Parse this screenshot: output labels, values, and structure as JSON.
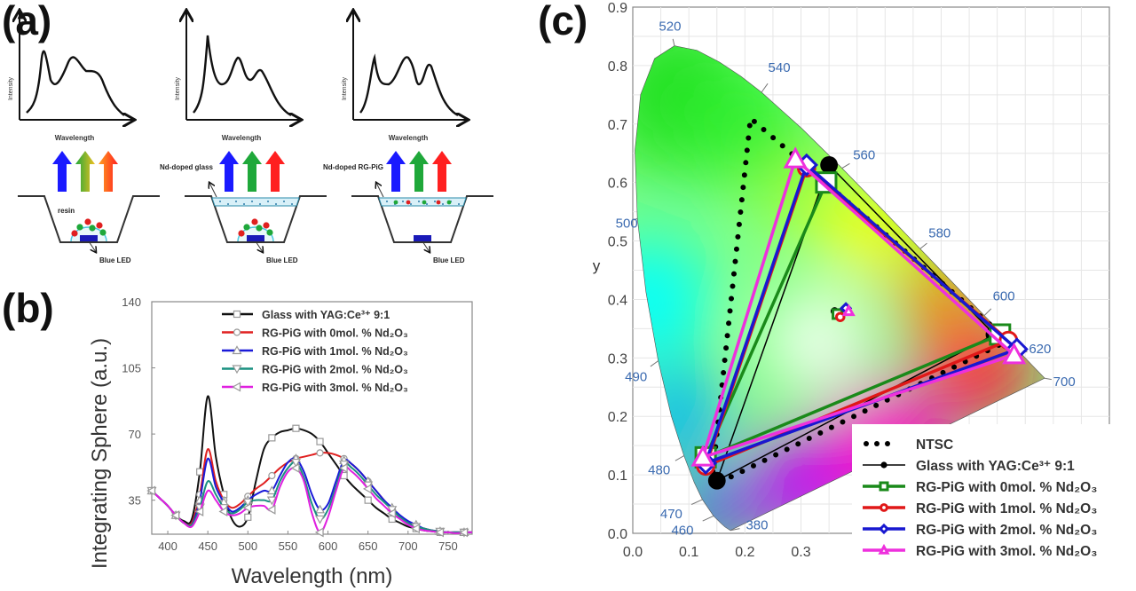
{
  "panel_labels": {
    "a": "(a)",
    "b": "(b)",
    "c": "(c)"
  },
  "panel_a": {
    "columns": [
      {
        "ylabel": "Intensity",
        "xlabel": "Wavelength",
        "layer_label": "resin",
        "chip_label": "Blue LED"
      },
      {
        "ylabel": "Intensity",
        "xlabel": "Wavelength",
        "layer_label": "Nd-doped glass",
        "chip_label": "Blue LED"
      },
      {
        "ylabel": "Intensity",
        "xlabel": "Wavelength",
        "layer_label": "Nd-doped RG-PiG",
        "chip_label": "Blue LED"
      }
    ],
    "arrow_colors": [
      "#1a1aff",
      "#1fa83a",
      "#ff2020"
    ]
  },
  "chart_data": [
    {
      "type": "line",
      "panel": "b",
      "xlabel": "Wavelength (nm)",
      "ylabel": "Integrating Sphere (a.u.)",
      "xlim": [
        380,
        780
      ],
      "ylim": [
        17,
        140
      ],
      "xticks": [
        400,
        450,
        500,
        550,
        600,
        650,
        700,
        750
      ],
      "yticks": [
        35,
        70,
        105,
        140
      ],
      "legend_position": "top-right",
      "x": [
        380,
        390,
        400,
        410,
        420,
        430,
        440,
        450,
        460,
        470,
        480,
        490,
        500,
        510,
        520,
        530,
        540,
        550,
        560,
        570,
        580,
        590,
        600,
        610,
        620,
        630,
        640,
        650,
        660,
        670,
        680,
        690,
        700,
        710,
        720,
        730,
        740,
        750,
        760,
        770,
        780
      ],
      "series": [
        {
          "name": "Glass with YAG:Ce³⁺ 9:1",
          "color": "#111111",
          "marker": "square",
          "values": [
            40,
            36,
            32,
            27,
            24,
            25,
            50,
            90,
            58,
            38,
            25,
            21,
            26,
            45,
            62,
            68,
            71,
            72,
            73,
            72,
            70,
            66,
            60,
            54,
            48,
            43,
            39,
            35,
            31,
            28,
            25,
            23,
            21,
            20,
            19,
            18.5,
            18,
            18,
            18,
            18,
            18
          ]
        },
        {
          "name": "RG-PiG with 0mol. % Nd₂O₃",
          "color": "#e02020",
          "marker": "circle",
          "values": [
            40,
            36,
            32,
            27,
            23,
            23,
            38,
            62,
            45,
            35,
            31,
            33,
            37,
            41,
            44,
            48,
            52,
            55,
            57,
            58,
            59,
            60,
            60,
            59,
            57,
            54,
            50,
            45,
            40,
            35,
            30,
            26,
            23,
            21,
            20,
            19,
            18.5,
            18,
            18,
            18,
            18
          ]
        },
        {
          "name": "RG-PiG with 1mol. % Nd₂O₃",
          "color": "#1a1ad8",
          "marker": "triangle-up",
          "values": [
            40,
            36,
            32,
            27,
            23,
            22,
            35,
            57,
            42,
            34,
            29,
            31,
            35,
            38,
            40,
            40,
            48,
            55,
            57,
            50,
            38,
            30,
            33,
            45,
            56,
            54,
            50,
            45,
            40,
            35,
            31,
            27,
            24,
            22,
            20,
            19,
            18.5,
            18,
            18,
            18,
            18
          ]
        },
        {
          "name": "RG-PiG with 2mol. % Nd₂O₃",
          "color": "#1a9080",
          "marker": "triangle-down",
          "values": [
            40,
            36,
            32,
            27,
            23,
            22,
            31,
            45,
            38,
            31,
            28,
            30,
            34,
            35,
            35,
            35,
            45,
            52,
            55,
            47,
            33,
            25,
            30,
            42,
            54,
            52,
            48,
            43,
            38,
            34,
            30,
            26,
            23,
            21,
            20,
            19,
            18.5,
            18,
            18,
            18,
            18
          ]
        },
        {
          "name": "RG-PiG with 3mol. % Nd₂O₃",
          "color": "#e020e0",
          "marker": "triangle-left",
          "values": [
            40,
            36,
            32,
            27,
            23,
            21,
            29,
            40,
            35,
            29,
            27,
            28,
            31,
            32,
            32,
            30,
            42,
            50,
            52,
            45,
            28,
            18,
            26,
            40,
            52,
            50,
            46,
            41,
            36,
            32,
            28,
            25,
            22,
            20,
            19,
            18.5,
            18,
            18,
            17.5,
            18,
            18
          ]
        }
      ]
    },
    {
      "type": "scatter",
      "panel": "c",
      "xlabel": "",
      "ylabel": "y",
      "xlim": [
        0,
        0.85
      ],
      "ylim": [
        0,
        0.9
      ],
      "xticks": [
        "0.0",
        "0.1",
        "0.2",
        "0.3"
      ],
      "yticks": [
        "0.0",
        "0.1",
        "0.2",
        "0.3",
        "0.4",
        "0.5",
        "0.6",
        "0.7",
        "0.8",
        "0.9"
      ],
      "grid": true,
      "legend_position": "bottom-right",
      "wavelength_labels": [
        {
          "nm": "520",
          "x": 0.0743,
          "y": 0.8338
        },
        {
          "nm": "540",
          "x": 0.2296,
          "y": 0.7543
        },
        {
          "nm": "560",
          "x": 0.3731,
          "y": 0.6245
        },
        {
          "nm": "580",
          "x": 0.5125,
          "y": 0.4866
        },
        {
          "nm": "600",
          "x": 0.627,
          "y": 0.3725
        },
        {
          "nm": "620",
          "x": 0.6915,
          "y": 0.3083
        },
        {
          "nm": "700",
          "x": 0.7347,
          "y": 0.2653
        },
        {
          "nm": "500",
          "x": 0.0082,
          "y": 0.5384
        },
        {
          "nm": "490",
          "x": 0.0454,
          "y": 0.295
        },
        {
          "nm": "480",
          "x": 0.0913,
          "y": 0.1327
        },
        {
          "nm": "470",
          "x": 0.1241,
          "y": 0.0578
        },
        {
          "nm": "460",
          "x": 0.144,
          "y": 0.0297
        },
        {
          "nm": "380",
          "x": 0.1741,
          "y": 0.005
        }
      ],
      "series": [
        {
          "name": "NTSC",
          "color": "#000000",
          "style": "dotted",
          "points": [
            [
              0.67,
              0.33
            ],
            [
              0.21,
              0.71
            ],
            [
              0.14,
              0.08
            ]
          ]
        },
        {
          "name": "Glass with YAG:Ce³⁺ 9:1",
          "color": "#000000",
          "marker": "filled-circle",
          "points": [
            [
              0.35,
              0.63
            ],
            [
              0.645,
              0.34
            ],
            [
              0.15,
              0.09
            ]
          ],
          "white_point": [
            0.36,
            0.38
          ]
        },
        {
          "name": "RG-PiG with 0mol. % Nd₂O₃",
          "color": "#1a8a1a",
          "marker": "square",
          "points": [
            [
              0.345,
              0.6
            ],
            [
              0.655,
              0.34
            ],
            [
              0.13,
              0.13
            ]
          ],
          "white_point": [
            0.365,
            0.375
          ]
        },
        {
          "name": "RG-PiG with 1mol. % Nd₂O₃",
          "color": "#e01818",
          "marker": "circle",
          "points": [
            [
              0.31,
              0.625
            ],
            [
              0.67,
              0.33
            ],
            [
              0.13,
              0.115
            ]
          ],
          "white_point": [
            0.37,
            0.37
          ]
        },
        {
          "name": "RG-PiG with 2mol. % Nd₂O₃",
          "color": "#1818d0",
          "marker": "diamond",
          "points": [
            [
              0.31,
              0.63
            ],
            [
              0.685,
              0.315
            ],
            [
              0.13,
              0.12
            ]
          ],
          "white_point": [
            0.38,
            0.385
          ]
        },
        {
          "name": "RG-PiG with 3mol. % Nd₂O₃",
          "color": "#ee30dd",
          "marker": "triangle",
          "points": [
            [
              0.29,
              0.64
            ],
            [
              0.68,
              0.305
            ],
            [
              0.125,
              0.13
            ]
          ],
          "white_point": [
            0.385,
            0.38
          ]
        }
      ]
    }
  ]
}
